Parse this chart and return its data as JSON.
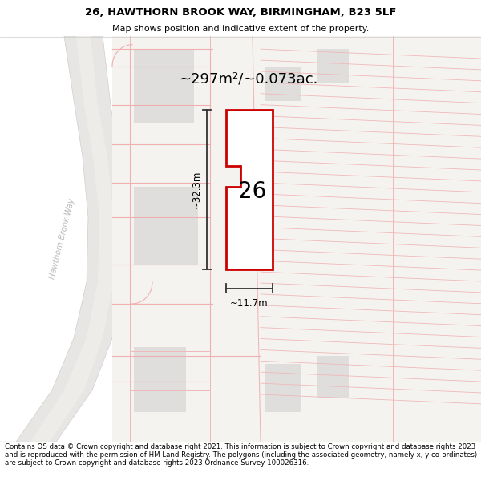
{
  "title_line1": "26, HAWTHORN BROOK WAY, BIRMINGHAM, B23 5LF",
  "title_line2": "Map shows position and indicative extent of the property.",
  "footer_text": "Contains OS data © Crown copyright and database right 2021. This information is subject to Crown copyright and database rights 2023 and is reproduced with the permission of HM Land Registry. The polygons (including the associated geometry, namely x, y co-ordinates) are subject to Crown copyright and database rights 2023 Ordnance Survey 100026316.",
  "area_label": "~297m²/~0.073ac.",
  "width_label": "~11.7m",
  "height_label": "~32.3m",
  "number_label": "26",
  "map_bg": "#f2f0ee",
  "plot_fill": "#ffffff",
  "plot_border": "#cc0000",
  "grid_line_color": "#f0b8b8",
  "building_fill": "#e0dedd",
  "road_text_color": "#b8b8b8",
  "road_fill": "#e8e6e4",
  "road_edge": "#d0cecb",
  "green_area": "#e8ede8",
  "title_fontsize": 9.5,
  "subtitle_fontsize": 8,
  "area_fontsize": 13,
  "number_fontsize": 20,
  "dim_fontsize": 8.5,
  "footer_fontsize": 6.2
}
